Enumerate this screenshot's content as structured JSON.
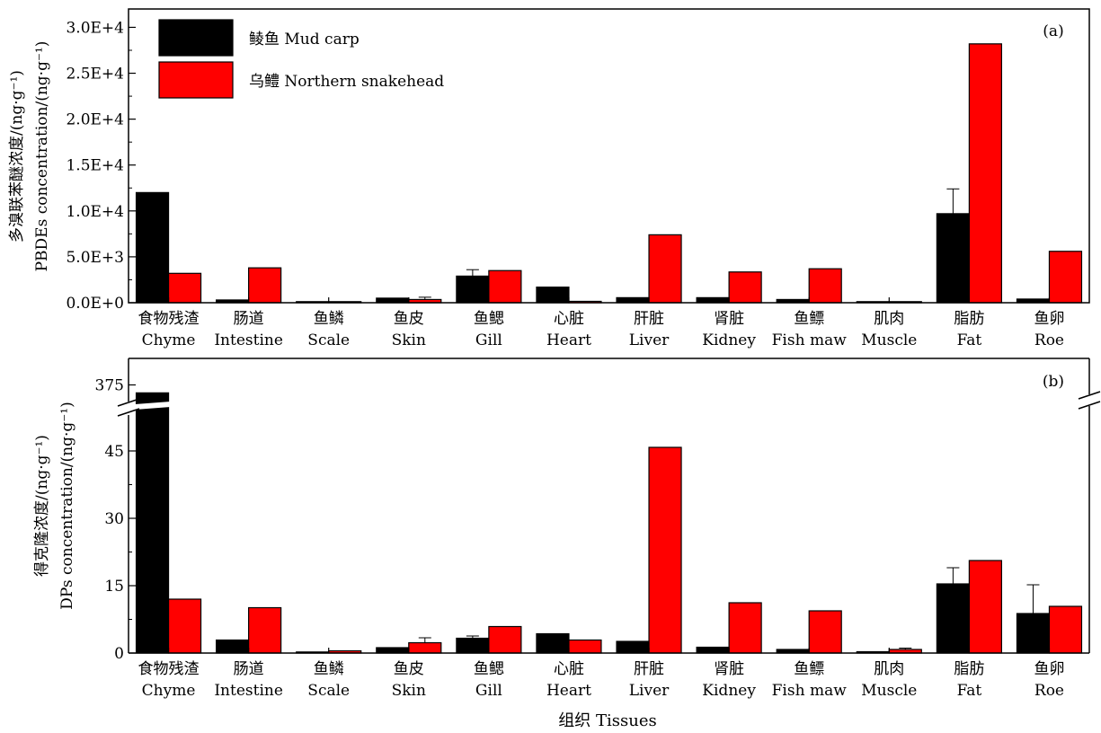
{
  "chart_data": [
    {
      "type": "bar",
      "panel_label": "(a)",
      "ylabel_zh": "多溴联苯醚浓度/(ng·g⁻¹)",
      "ylabel_en": "PBDEs concentration/(ng·g⁻¹)",
      "ylim": [
        0,
        32000
      ],
      "y_ticks": [
        0,
        5000,
        10000,
        15000,
        20000,
        25000,
        30000
      ],
      "y_tick_labels": [
        "0.0E+0",
        "5.0E+3",
        "1.0E+4",
        "1.5E+4",
        "2.0E+4",
        "2.5E+4",
        "3.0E+4"
      ],
      "categories_zh": [
        "食物残渣",
        "肠道",
        "鱼鳞",
        "鱼皮",
        "鱼鳃",
        "心脏",
        "肝脏",
        "肾脏",
        "鱼鳔",
        "肌肉",
        "脂肪",
        "鱼卵"
      ],
      "categories_en": [
        "Chyme",
        "Intestine",
        "Scale",
        "Skin",
        "Gill",
        "Heart",
        "Liver",
        "Kidney",
        "Fish maw",
        "Muscle",
        "Fat",
        "Roe"
      ],
      "series": [
        {
          "name": "鲮鱼 Mud carp",
          "color": "#000000",
          "values": [
            12000,
            300,
            0,
            500,
            2900,
            1700,
            550,
            550,
            350,
            100,
            9700,
            400
          ],
          "errors": [
            0,
            0,
            0,
            0,
            700,
            0,
            0,
            0,
            0,
            0,
            2700,
            0
          ]
        },
        {
          "name": "乌鳢 Northern snakehead",
          "color": "#ff0000",
          "values": [
            3200,
            3800,
            0,
            350,
            3500,
            150,
            7400,
            3350,
            3700,
            100,
            28200,
            5600
          ],
          "errors": [
            0,
            0,
            0,
            250,
            0,
            0,
            0,
            0,
            0,
            0,
            0,
            0
          ]
        }
      ],
      "grid": false,
      "legend_position": "top-left"
    },
    {
      "type": "bar",
      "panel_label": "(b)",
      "ylabel_zh": "得克隆浓度/(ng·g⁻¹)",
      "ylabel_en": "DPs concentration/(ng·g⁻¹)",
      "ylim": [
        0,
        385
      ],
      "axis_break": [
        55,
        365
      ],
      "y_ticks": [
        0,
        15,
        30,
        45,
        375
      ],
      "y_tick_labels": [
        "0",
        "15",
        "30",
        "45",
        "375"
      ],
      "categories_zh": [
        "食物残渣",
        "肠道",
        "鱼鳞",
        "鱼皮",
        "鱼鳃",
        "心脏",
        "肝脏",
        "肾脏",
        "鱼鳔",
        "肌肉",
        "脂肪",
        "鱼卵"
      ],
      "categories_en": [
        "Chyme",
        "Intestine",
        "Scale",
        "Skin",
        "Gill",
        "Heart",
        "Liver",
        "Kidney",
        "Fish maw",
        "Muscle",
        "Fat",
        "Roe"
      ],
      "series": [
        {
          "name": "鲮鱼 Mud carp",
          "color": "#000000",
          "values": [
            372,
            2.9,
            0.1,
            1.2,
            3.3,
            4.3,
            2.6,
            1.3,
            0.8,
            0.3,
            15.4,
            8.8
          ],
          "errors": [
            0,
            0,
            0,
            0,
            0.5,
            0,
            0,
            0,
            0,
            0,
            3.6,
            6.4
          ]
        },
        {
          "name": "乌鳢 Northern snakehead",
          "color": "#ff0000",
          "values": [
            12,
            10.1,
            0.5,
            2.3,
            5.9,
            2.9,
            45.8,
            11.2,
            9.4,
            0.8,
            20.6,
            10.4
          ],
          "errors": [
            0,
            0,
            0,
            1.1,
            0,
            0,
            0,
            0,
            0,
            0.3,
            0,
            0
          ]
        }
      ],
      "grid": false
    }
  ],
  "xlabel": "组织 Tissues"
}
